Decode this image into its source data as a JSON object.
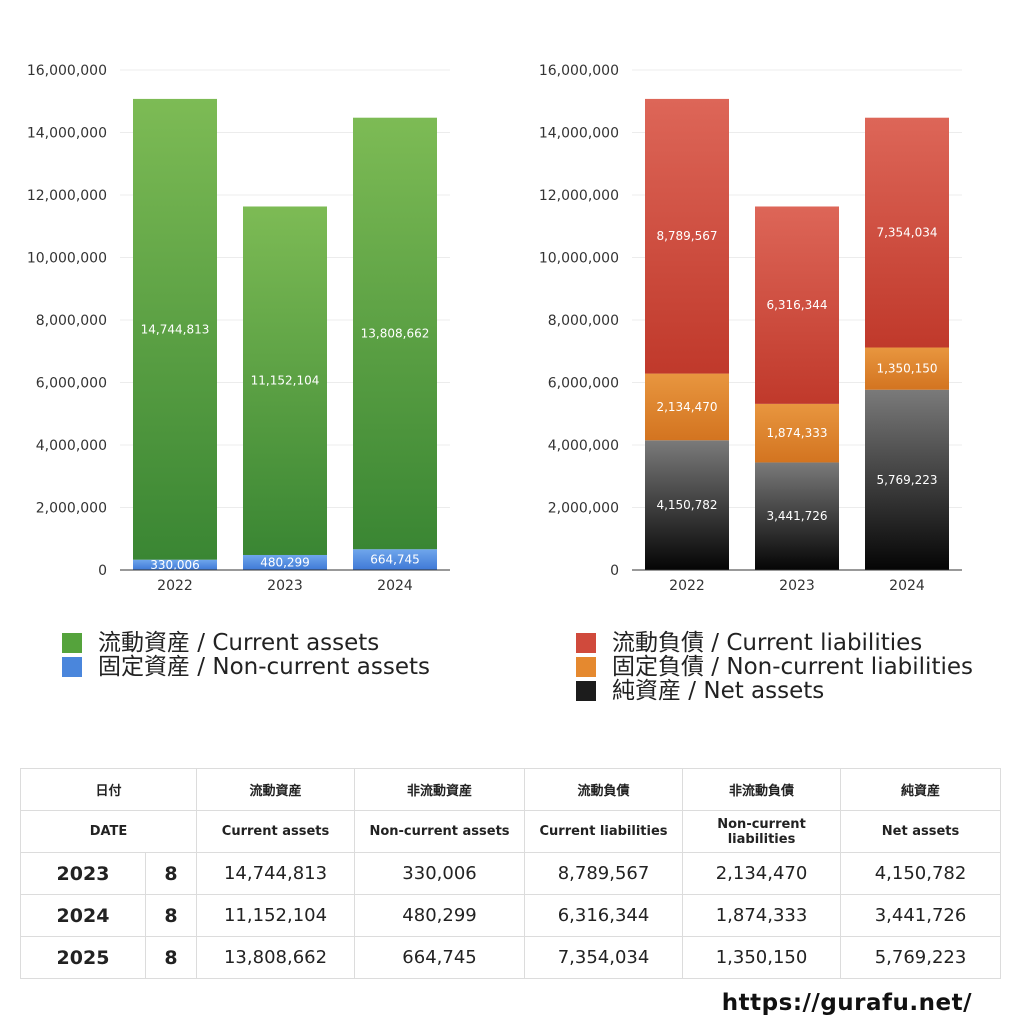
{
  "chart_data": [
    {
      "type": "bar",
      "stacked": true,
      "categories": [
        "2022",
        "2023",
        "2024"
      ],
      "ylim": [
        0,
        16000000
      ],
      "yticks": [
        "0",
        "2,000,000",
        "4,000,000",
        "6,000,000",
        "8,000,000",
        "10,000,000",
        "12,000,000",
        "14,000,000",
        "16,000,000"
      ],
      "series": [
        {
          "name": "固定資産 / Non-current assets",
          "values": [
            330006,
            480299,
            664745
          ],
          "labels": [
            "330,006",
            "480,299",
            "664,745"
          ],
          "color_top": "#6fa6ec",
          "color_bottom": "#3f79d6"
        },
        {
          "name": "流動資産 / Current assets",
          "values": [
            14744813,
            11152104,
            13808662
          ],
          "labels": [
            "14,744,813",
            "11,152,104",
            "13,808,662"
          ],
          "color_top": "#7dbb55",
          "color_bottom": "#3a8633"
        }
      ]
    },
    {
      "type": "bar",
      "stacked": true,
      "categories": [
        "2022",
        "2023",
        "2024"
      ],
      "ylim": [
        0,
        16000000
      ],
      "yticks": [
        "0",
        "2,000,000",
        "4,000,000",
        "6,000,000",
        "8,000,000",
        "10,000,000",
        "12,000,000",
        "14,000,000",
        "16,000,000"
      ],
      "series": [
        {
          "name": "純資産 / Net assets",
          "values": [
            4150782,
            3441726,
            5769223
          ],
          "labels": [
            "4,150,782",
            "3,441,726",
            "5,769,223"
          ],
          "color_top": "#7a7a7a",
          "color_bottom": "#050505"
        },
        {
          "name": "固定負債 / Non-current liabilities",
          "values": [
            2134470,
            1874333,
            1350150
          ],
          "labels": [
            "2,134,470",
            "1,874,333",
            "1,350,150"
          ],
          "color_top": "#e8963f",
          "color_bottom": "#d37420"
        },
        {
          "name": "流動負債 / Current liabilities",
          "values": [
            8789567,
            6316344,
            7354034
          ],
          "labels": [
            "8,789,567",
            "6,316,344",
            "7,354,034"
          ],
          "color_top": "#dd6658",
          "color_bottom": "#c0392b"
        }
      ]
    }
  ],
  "legend_assets": [
    {
      "label": "流動資産 / Current assets",
      "color": "#55a33c"
    },
    {
      "label": "固定資産 / Non-current assets",
      "color": "#4a86dc"
    }
  ],
  "legend_liab": [
    {
      "label": "流動負債 / Current liabilities",
      "color": "#d04a3c"
    },
    {
      "label": "固定負債 / Non-current liabilities",
      "color": "#e5892f"
    },
    {
      "label": "純資産 / Net assets",
      "color": "#1c1c1c"
    }
  ],
  "table": {
    "header_jp": [
      "日付",
      "流動資産",
      "非流動資産",
      "流動負債",
      "非流動負債",
      "純資産"
    ],
    "header_en": [
      "DATE",
      "Current assets",
      "Non-current assets",
      "Current liabilities",
      "Non-current liabilities",
      "Net assets"
    ],
    "rows": [
      {
        "year": "2023",
        "month": "8",
        "values": [
          "14,744,813",
          "330,006",
          "8,789,567",
          "2,134,470",
          "4,150,782"
        ]
      },
      {
        "year": "2024",
        "month": "8",
        "values": [
          "11,152,104",
          "480,299",
          "6,316,344",
          "1,874,333",
          "3,441,726"
        ]
      },
      {
        "year": "2025",
        "month": "8",
        "values": [
          "13,808,662",
          "664,745",
          "7,354,034",
          "1,350,150",
          "5,769,223"
        ]
      }
    ]
  },
  "footer": {
    "url": "https://gurafu.net/"
  }
}
